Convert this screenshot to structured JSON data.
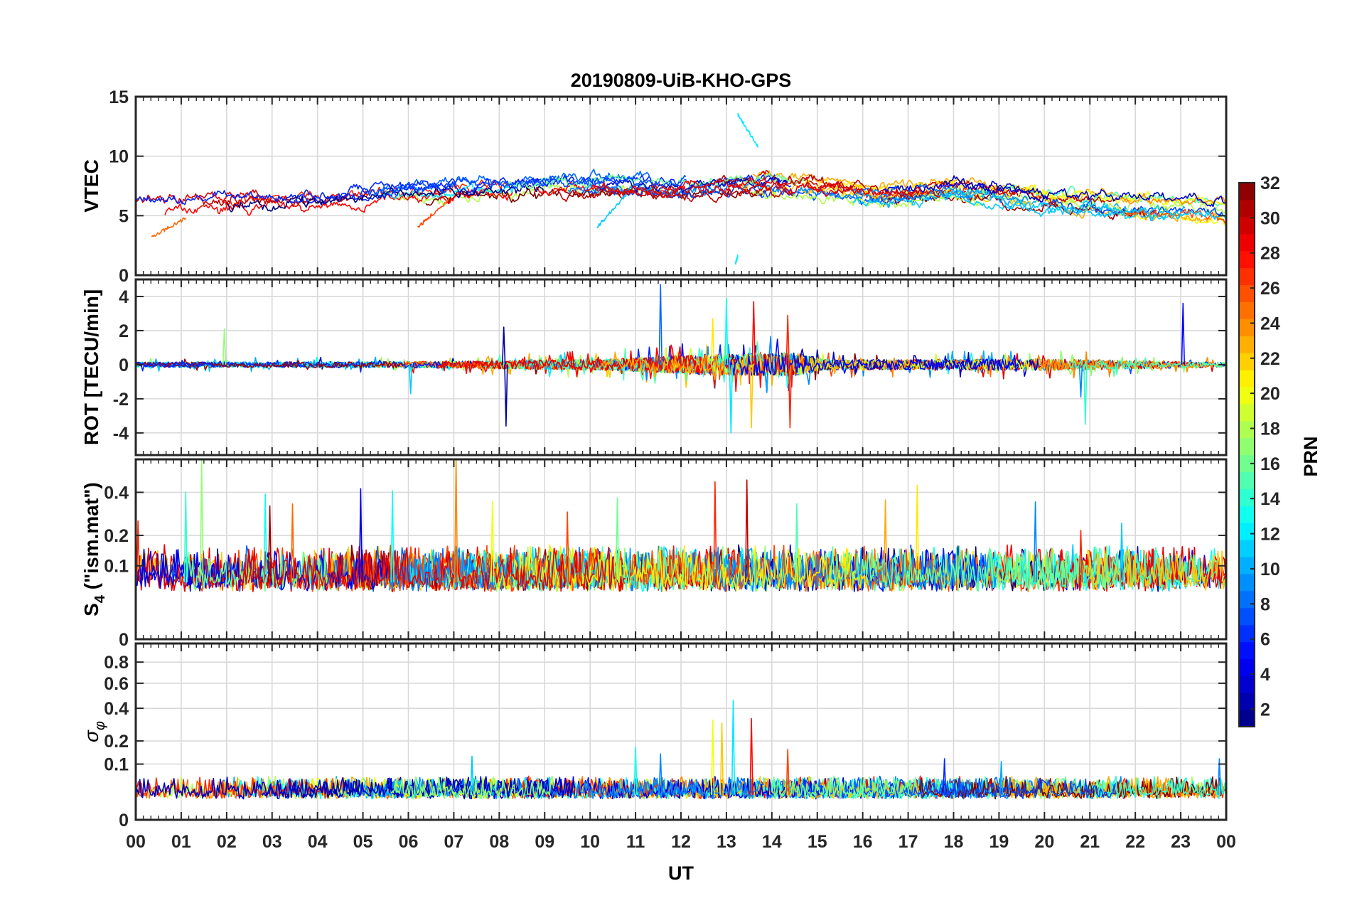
{
  "chart_data": {
    "type": "line",
    "title": "20190809-UiB-KHO-GPS",
    "xlabel": "UT",
    "x_range": [
      0,
      24
    ],
    "x_ticks": [
      "00",
      "01",
      "02",
      "03",
      "04",
      "05",
      "06",
      "07",
      "08",
      "09",
      "10",
      "11",
      "12",
      "13",
      "14",
      "15",
      "16",
      "17",
      "18",
      "19",
      "20",
      "21",
      "22",
      "23",
      "00"
    ],
    "grid": true,
    "colorbar": {
      "label": "PRN",
      "range": [
        1,
        32
      ],
      "ticks": [
        "2",
        "4",
        "6",
        "8",
        "10",
        "12",
        "14",
        "16",
        "18",
        "20",
        "22",
        "24",
        "26",
        "28",
        "30",
        "32"
      ],
      "colormap": "jet",
      "placement": "right"
    },
    "panels": [
      {
        "name": "vtec",
        "ylabel": "VTEC",
        "ylim": [
          0,
          15
        ],
        "yticks": [
          0,
          5,
          10,
          15
        ],
        "ytick_labels": [
          "0",
          "5",
          "10",
          "15"
        ],
        "baseline_profile": [
          [
            0,
            5.6
          ],
          [
            2,
            5.9
          ],
          [
            4,
            6.1
          ],
          [
            6,
            6.8
          ],
          [
            8,
            7.2
          ],
          [
            10,
            7.6
          ],
          [
            12,
            7.4
          ],
          [
            13.5,
            7.8
          ],
          [
            15,
            7.4
          ],
          [
            16.5,
            6.8
          ],
          [
            18,
            7.3
          ],
          [
            19,
            6.8
          ],
          [
            20,
            6.2
          ],
          [
            22,
            5.8
          ],
          [
            24,
            5.4
          ]
        ],
        "noise": 0.45,
        "notable_values": [
          {
            "prn": 12,
            "x": [
              13.25,
              13.7
            ],
            "y": [
              13.5,
              10.8
            ],
            "note": "peak"
          },
          {
            "prn": 11,
            "x": [
              10.15,
              10.8
            ],
            "y": [
              4.0,
              6.8
            ],
            "note": "rising arc"
          },
          {
            "prn": 12,
            "x": [
              13.2,
              13.25
            ],
            "y": [
              1.0,
              1.6
            ],
            "note": "short segment"
          },
          {
            "prn": 25,
            "x": [
              0.35,
              1.1
            ],
            "y": [
              3.2,
              4.8
            ],
            "note": "low arc"
          },
          {
            "prn": 26,
            "x": [
              6.2,
              6.9
            ],
            "y": [
              4.0,
              6.4
            ],
            "note": "rising arc"
          }
        ]
      },
      {
        "name": "rot",
        "ylabel": "ROT [TECU/min]",
        "ylim": [
          -5.3,
          5
        ],
        "yticks": [
          -4,
          -2,
          0,
          2,
          4
        ],
        "ytick_labels": [
          "-4",
          "-2",
          "0",
          "2",
          "4"
        ],
        "baseline_profile": [
          [
            0,
            0
          ],
          [
            24,
            0
          ]
        ],
        "noise_profile": [
          [
            0,
            0.15
          ],
          [
            7,
            0.2
          ],
          [
            10.5,
            0.35
          ],
          [
            12.5,
            0.6
          ],
          [
            14.5,
            0.7
          ],
          [
            15.2,
            0.3
          ],
          [
            17,
            0.3
          ],
          [
            20,
            0.35
          ],
          [
            24,
            0.15
          ]
        ],
        "spikes": [
          {
            "prn": 8,
            "x": 11.55,
            "y": 4.7
          },
          {
            "prn": 13,
            "x": 13.0,
            "y": 3.9
          },
          {
            "prn": 28,
            "x": 13.6,
            "y": 3.7
          },
          {
            "prn": 5,
            "x": 23.05,
            "y": 3.6
          },
          {
            "prn": 27,
            "x": 14.35,
            "y": 2.9
          },
          {
            "prn": 2,
            "x": 8.1,
            "y": 2.2
          },
          {
            "prn": 2,
            "x": 8.15,
            "y": -3.6
          },
          {
            "prn": 12,
            "x": 13.1,
            "y": -4.0
          },
          {
            "prn": 22,
            "x": 13.55,
            "y": -3.7
          },
          {
            "prn": 27,
            "x": 14.4,
            "y": -3.7
          },
          {
            "prn": 14,
            "x": 20.9,
            "y": -3.5
          },
          {
            "prn": 9,
            "x": 20.8,
            "y": -1.9
          },
          {
            "prn": 17,
            "x": 1.95,
            "y": 2.1
          },
          {
            "prn": 21,
            "x": 12.7,
            "y": 2.7
          },
          {
            "prn": 11,
            "x": 6.05,
            "y": -1.7
          }
        ]
      },
      {
        "name": "s4",
        "ylabel": "S4 (\"ism.mat\")",
        "ylabel_main": "S",
        "ylabel_sub": "4",
        "ylabel_rest": " (\"ism.mat\")",
        "ylim": [
          0,
          0.6
        ],
        "scale": "sqrt",
        "yticks": [
          0,
          0.1,
          0.2,
          0.4
        ],
        "ytick_labels": [
          "0",
          "0.1",
          "0.2",
          "0.4"
        ],
        "baseline_profile": [
          [
            0,
            0.06
          ],
          [
            24,
            0.06
          ]
        ],
        "noise": 0.03,
        "spikes": [
          {
            "prn": 17,
            "x": 1.45,
            "y": 0.6
          },
          {
            "prn": 24,
            "x": 7.05,
            "y": 0.6
          },
          {
            "prn": 30,
            "x": 13.45,
            "y": 0.47
          },
          {
            "prn": 27,
            "x": 12.75,
            "y": 0.46
          },
          {
            "prn": 21,
            "x": 17.2,
            "y": 0.44
          },
          {
            "prn": 4,
            "x": 4.95,
            "y": 0.42
          },
          {
            "prn": 13,
            "x": 5.65,
            "y": 0.41
          },
          {
            "prn": 14,
            "x": 1.1,
            "y": 0.4
          },
          {
            "prn": 13,
            "x": 2.85,
            "y": 0.39
          },
          {
            "prn": 16,
            "x": 10.6,
            "y": 0.37
          },
          {
            "prn": 25,
            "x": 3.45,
            "y": 0.34
          },
          {
            "prn": 31,
            "x": 2.95,
            "y": 0.33
          },
          {
            "prn": 20,
            "x": 7.85,
            "y": 0.35
          },
          {
            "prn": 27,
            "x": 0.05,
            "y": 0.26
          },
          {
            "prn": 15,
            "x": 14.55,
            "y": 0.34
          },
          {
            "prn": 9,
            "x": 19.8,
            "y": 0.35
          },
          {
            "prn": 23,
            "x": 16.5,
            "y": 0.36
          },
          {
            "prn": 11,
            "x": 21.7,
            "y": 0.25
          },
          {
            "prn": 27,
            "x": 20.8,
            "y": 0.22
          },
          {
            "prn": 26,
            "x": 9.5,
            "y": 0.3
          }
        ]
      },
      {
        "name": "sigma_phi",
        "ylabel": "σφ",
        "ylabel_main": "σ",
        "ylabel_sub": "φ",
        "ylim": [
          0,
          1
        ],
        "scale": "sqrt",
        "yticks": [
          0,
          0.1,
          0.2,
          0.4,
          0.6,
          0.8
        ],
        "ytick_labels": [
          "0",
          "0.1",
          "0.2",
          "0.4",
          "0.6",
          "0.8"
        ],
        "baseline_profile": [
          [
            0,
            0.02
          ],
          [
            24,
            0.02
          ]
        ],
        "noise": 0.012,
        "spikes": [
          {
            "prn": 12,
            "x": 13.15,
            "y": 0.46
          },
          {
            "prn": 28,
            "x": 13.55,
            "y": 0.33
          },
          {
            "prn": 20,
            "x": 12.7,
            "y": 0.32
          },
          {
            "prn": 22,
            "x": 12.9,
            "y": 0.3
          },
          {
            "prn": 13,
            "x": 11.0,
            "y": 0.17
          },
          {
            "prn": 26,
            "x": 14.35,
            "y": 0.16
          },
          {
            "prn": 9,
            "x": 11.55,
            "y": 0.14
          },
          {
            "prn": 11,
            "x": 7.4,
            "y": 0.13
          },
          {
            "prn": 6,
            "x": 17.8,
            "y": 0.12
          },
          {
            "prn": 10,
            "x": 19.05,
            "y": 0.11
          },
          {
            "prn": 9,
            "x": 23.85,
            "y": 0.12
          }
        ]
      }
    ]
  }
}
